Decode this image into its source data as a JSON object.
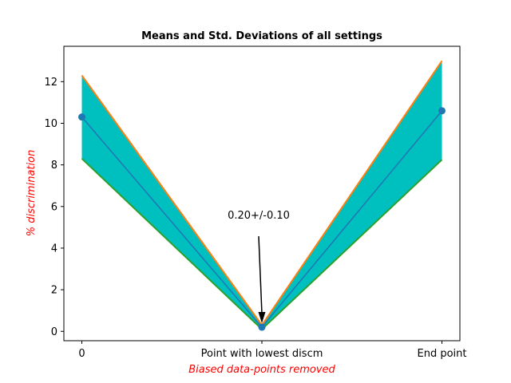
{
  "chart_data": {
    "type": "line",
    "title": "Means and Std. Deviations of all settings",
    "xlabel": "Biased data-points removed",
    "ylabel": "% discrimination",
    "categories": [
      "0",
      "Point with lowest discm",
      "End point"
    ],
    "yticks": [
      0,
      2,
      4,
      6,
      8,
      10,
      12
    ],
    "ylim": [
      -0.45,
      13.7
    ],
    "series": [
      {
        "values": [
          10.3,
          0.2,
          10.6
        ],
        "color": "#1f77b4",
        "marker": "circle"
      },
      {
        "values": [
          12.3,
          0.3,
          13.0
        ],
        "color": "#ff7f0e"
      },
      {
        "values": [
          8.3,
          0.1,
          8.25
        ],
        "color": "#2ca02c"
      }
    ],
    "fill_between": {
      "upper_series": 1,
      "lower_series": 2,
      "color": "#00bfbf"
    },
    "annotation": {
      "text": "0.20+/-0.10",
      "x_index": 1,
      "y": 0.2,
      "text_y": 4.8
    },
    "label_color": "#ff0000",
    "grid": false,
    "legend": "none"
  }
}
